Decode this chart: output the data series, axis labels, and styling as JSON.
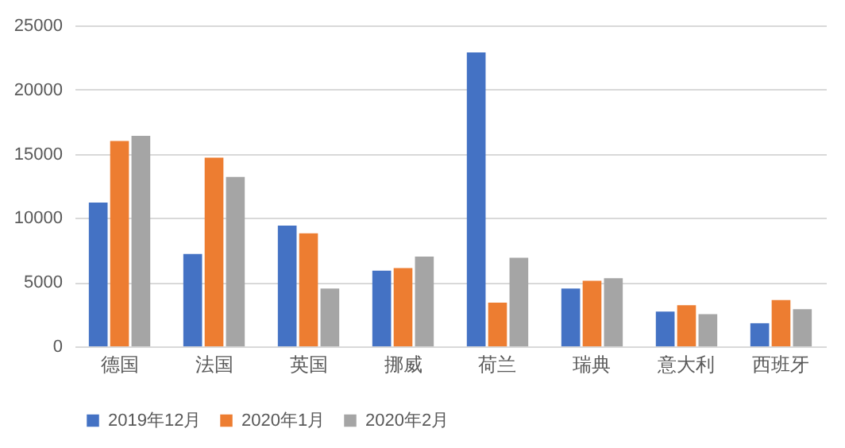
{
  "chart_data": {
    "type": "bar",
    "categories": [
      "德国",
      "法国",
      "英国",
      "挪威",
      "荷兰",
      "瑞典",
      "意大利",
      "西班牙"
    ],
    "series": [
      {
        "name": "2019年12月",
        "color": "#4472c4",
        "values": [
          11200,
          7200,
          9400,
          5900,
          22900,
          4500,
          2700,
          1800
        ]
      },
      {
        "name": "2020年1月",
        "color": "#ed7d31",
        "values": [
          16000,
          14700,
          8800,
          6100,
          3400,
          5100,
          3200,
          3600
        ]
      },
      {
        "name": "2020年2月",
        "color": "#a5a5a5",
        "values": [
          16400,
          13200,
          4500,
          7000,
          6900,
          5300,
          2500,
          2900
        ]
      }
    ],
    "ylim": [
      0,
      25000
    ],
    "yticks": [
      0,
      5000,
      10000,
      15000,
      20000,
      25000
    ],
    "grid": "y",
    "legend": "bottom"
  }
}
